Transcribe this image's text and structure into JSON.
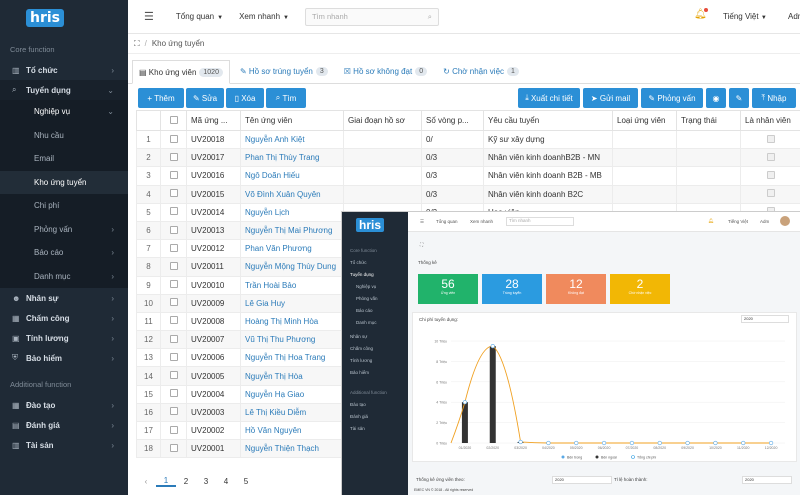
{
  "brand": {
    "logo": "hris"
  },
  "sidebar": {
    "section1": "Core function",
    "section2": "Additional function",
    "items": [
      {
        "label": "Tổ chức"
      },
      {
        "label": "Tuyển dụng"
      },
      {
        "label": "Nhân sự"
      },
      {
        "label": "Chấm công"
      },
      {
        "label": "Tính lương"
      },
      {
        "label": "Bảo hiểm"
      },
      {
        "label": "Đào tạo"
      },
      {
        "label": "Đánh giá"
      },
      {
        "label": "Tài sản"
      }
    ],
    "sub": {
      "header": "Nghiệp vụ",
      "items": [
        "Nhu cầu",
        "Email",
        "Kho ứng tuyển",
        "Chi phí"
      ],
      "others": [
        "Phỏng vấn",
        "Báo cáo",
        "Danh mục"
      ]
    }
  },
  "topbar": {
    "menu1": "Tổng quan",
    "menu2": "Xem nhanh",
    "search_placeholder": "Tìm nhanh",
    "language": "Tiếng Việt",
    "user": "Adm"
  },
  "breadcrumb": {
    "current": "Kho ứng tuyển"
  },
  "tabs": [
    {
      "label": "Kho ứng viên",
      "count": "1020"
    },
    {
      "label": "Hồ sơ trúng tuyển",
      "count": "3"
    },
    {
      "label": "Hồ sơ không đạt",
      "count": "0"
    },
    {
      "label": "Chờ nhận việc",
      "count": "1"
    }
  ],
  "toolbar": {
    "add": "Thêm",
    "edit": "Sửa",
    "delete": "Xóa",
    "search": "Tìm",
    "export": "Xuất chi tiết",
    "mail": "Gửi mail",
    "interview": "Phỏng vấn",
    "import": "Nhập"
  },
  "table": {
    "headers": [
      "Mã ứng ...",
      "Tên ứng viên",
      "Giai đoạn hồ sơ",
      "Số vòng p...",
      "Yêu cầu tuyển",
      "Loại ứng viên",
      "Trạng thái",
      "Là nhân viên"
    ],
    "rows": [
      {
        "n": "1",
        "code": "UV20018",
        "name": "Nguyễn Anh Kiệt",
        "rounds": "0/",
        "req": "Kỹ sư xây dựng"
      },
      {
        "n": "2",
        "code": "UV20017",
        "name": "Phan Thị Thùy Trang",
        "rounds": "0/3",
        "req": "Nhân viên kinh doanhB2B - MN"
      },
      {
        "n": "3",
        "code": "UV20016",
        "name": "Ngô Doãn Hiếu",
        "rounds": "0/3",
        "req": "Nhân viên kinh doanh B2B - MB"
      },
      {
        "n": "4",
        "code": "UV20015",
        "name": "Võ Đình Xuân Quyên",
        "rounds": "0/3",
        "req": "Nhân viên kinh doanh B2C"
      },
      {
        "n": "5",
        "code": "UV20014",
        "name": "Nguyễn Lịch",
        "rounds": "0/3",
        "req": "Họa viên"
      },
      {
        "n": "6",
        "code": "UV20013",
        "name": "Nguyễn Thị Mai Phương",
        "rounds": "",
        "req": ""
      },
      {
        "n": "7",
        "code": "UV20012",
        "name": "Phan Văn Phương",
        "rounds": "",
        "req": ""
      },
      {
        "n": "8",
        "code": "UV20011",
        "name": "Nguyễn Mộng Thùy Dung",
        "rounds": "",
        "req": ""
      },
      {
        "n": "9",
        "code": "UV20010",
        "name": "Trần Hoài Bảo",
        "rounds": "",
        "req": ""
      },
      {
        "n": "10",
        "code": "UV20009",
        "name": "Lê Gia Huy",
        "rounds": "",
        "req": ""
      },
      {
        "n": "11",
        "code": "UV20008",
        "name": "Hoàng Thị Minh Hòa",
        "rounds": "",
        "req": ""
      },
      {
        "n": "12",
        "code": "UV20007",
        "name": "Vũ Thị Thu Phương",
        "rounds": "",
        "req": ""
      },
      {
        "n": "13",
        "code": "UV20006",
        "name": "Nguyễn Thị Hoa Trang",
        "rounds": "",
        "req": ""
      },
      {
        "n": "14",
        "code": "UV20005",
        "name": "Nguyễn Thị Hòa",
        "rounds": "",
        "req": ""
      },
      {
        "n": "15",
        "code": "UV20004",
        "name": "Nguyễn Hạ Giao",
        "rounds": "",
        "req": ""
      },
      {
        "n": "16",
        "code": "UV20003",
        "name": "Lê Thị Kiều Diễm",
        "rounds": "",
        "req": ""
      },
      {
        "n": "17",
        "code": "UV20002",
        "name": "Hồ Văn Nguyên",
        "rounds": "",
        "req": ""
      },
      {
        "n": "18",
        "code": "UV20001",
        "name": "Nguyễn Thiện Thạch",
        "rounds": "",
        "req": ""
      }
    ]
  },
  "pager": {
    "prev": "‹",
    "pages": [
      "1",
      "2",
      "3",
      "4",
      "5"
    ]
  },
  "overlay": {
    "stats_title": "Thống kê",
    "cards": [
      {
        "value": "56",
        "label": "Ứng viên",
        "color": "#21b36b"
      },
      {
        "value": "28",
        "label": "Trúng tuyển",
        "color": "#2b9be0"
      },
      {
        "value": "12",
        "label": "Không đạt",
        "color": "#f08a5d"
      },
      {
        "value": "2",
        "label": "Chờ nhận việc",
        "color": "#f2b705"
      }
    ],
    "chart_title": "Chi phí tuyển dụng:",
    "year": "2020",
    "footer_left": "Thống kê ứng viên theo:",
    "footer_mid": "Tỉ lệ hoàn thành:",
    "copyright": "EMEC VN © 2018 - All rights reserved"
  },
  "chart_data": {
    "type": "bar",
    "categories": [
      "01/2020",
      "02/2020",
      "03/2020",
      "04/2020",
      "05/2020",
      "06/2020",
      "07/2020",
      "08/2020",
      "09/2020",
      "10/2020",
      "11/2020",
      "12/2020"
    ],
    "series": [
      {
        "name": "Bên trong",
        "values": [
          4,
          9.5,
          0.1,
          0,
          0,
          0,
          0,
          0,
          0,
          0,
          0,
          0
        ]
      },
      {
        "name": "Bên ngoài",
        "values": [
          0,
          0,
          0,
          0,
          0,
          0,
          0,
          0,
          0,
          0,
          0,
          0
        ]
      },
      {
        "name": "Tổng chi phí",
        "values": [
          4,
          9.5,
          0.1,
          0,
          0,
          0,
          0,
          0,
          0,
          0,
          0,
          0
        ]
      }
    ],
    "ylim": [
      0,
      10
    ],
    "colors": {
      "bars": "#333333",
      "line": "#f0a020",
      "points": "#5aa9e6"
    }
  }
}
